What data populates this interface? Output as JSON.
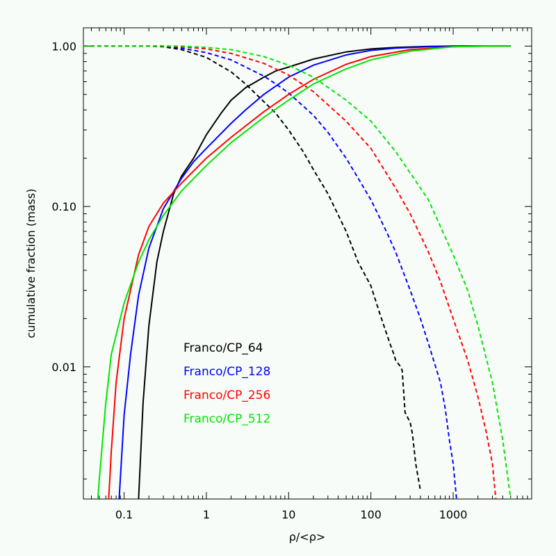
{
  "chart_data": {
    "type": "line",
    "xlabel": "ρ/<ρ>",
    "ylabel": "cumulative fraction (mass)",
    "xscale": "log",
    "yscale": "log",
    "xlim": [
      0.032,
      9000
    ],
    "ylim": [
      0.0015,
      1.3
    ],
    "x_ticks": [
      {
        "value": 0.1,
        "label": "0.1"
      },
      {
        "value": 1,
        "label": "1"
      },
      {
        "value": 10,
        "label": "10"
      },
      {
        "value": 100,
        "label": "100"
      },
      {
        "value": 1000,
        "label": "1000"
      }
    ],
    "y_ticks": [
      {
        "value": 1,
        "label": "1.00"
      },
      {
        "value": 0.1,
        "label": "0.10"
      },
      {
        "value": 0.01,
        "label": "0.01"
      }
    ],
    "legend": {
      "placement": "lower-left"
    },
    "series": [
      {
        "name": "Franco/CP_64",
        "color": "#000000",
        "cumulative_below": {
          "x": [
            0.15,
            0.17,
            0.2,
            0.25,
            0.3,
            0.4,
            0.5,
            0.7,
            1,
            1.5,
            2,
            3,
            5,
            7,
            10,
            20,
            50,
            100,
            200,
            500,
            1000,
            2000,
            5000
          ],
          "y": [
            0.0015,
            0.006,
            0.018,
            0.045,
            0.07,
            0.12,
            0.155,
            0.2,
            0.28,
            0.38,
            0.46,
            0.55,
            0.64,
            0.7,
            0.74,
            0.83,
            0.92,
            0.96,
            0.98,
            0.995,
            1.0,
            1.0,
            1.0
          ]
        },
        "cumulative_above": {
          "x": [
            0.032,
            0.1,
            0.2,
            0.3,
            0.5,
            1,
            2,
            3,
            5,
            7,
            10,
            15,
            20,
            30,
            50,
            70,
            100,
            130,
            170,
            190,
            200,
            230,
            240,
            250,
            260,
            300,
            320,
            350,
            400
          ],
          "y": [
            1.0,
            1.0,
            1.0,
            0.99,
            0.95,
            0.85,
            0.69,
            0.58,
            0.45,
            0.38,
            0.3,
            0.22,
            0.17,
            0.12,
            0.07,
            0.045,
            0.032,
            0.021,
            0.014,
            0.012,
            0.011,
            0.01,
            0.0095,
            0.007,
            0.0052,
            0.0045,
            0.0038,
            0.0025,
            0.0017
          ]
        }
      },
      {
        "name": "Franco/CP_128",
        "color": "#0000ff",
        "cumulative_below": {
          "x": [
            0.087,
            0.1,
            0.12,
            0.15,
            0.2,
            0.3,
            0.5,
            0.7,
            1,
            2,
            3,
            5,
            10,
            20,
            50,
            100,
            200,
            500,
            1000,
            2000,
            5000
          ],
          "y": [
            0.0015,
            0.005,
            0.012,
            0.028,
            0.055,
            0.097,
            0.15,
            0.19,
            0.23,
            0.33,
            0.4,
            0.5,
            0.64,
            0.76,
            0.88,
            0.94,
            0.97,
            0.99,
            1.0,
            1.0,
            1.0
          ]
        },
        "cumulative_above": {
          "x": [
            0.032,
            0.1,
            0.3,
            0.5,
            1,
            2,
            5,
            7,
            10,
            20,
            30,
            50,
            70,
            100,
            150,
            200,
            300,
            400,
            500,
            700,
            800,
            900,
            1000,
            1100
          ],
          "y": [
            1.0,
            1.0,
            1.0,
            0.97,
            0.91,
            0.82,
            0.65,
            0.58,
            0.51,
            0.37,
            0.29,
            0.2,
            0.15,
            0.11,
            0.072,
            0.052,
            0.03,
            0.02,
            0.014,
            0.008,
            0.0055,
            0.0035,
            0.0025,
            0.0015
          ]
        }
      },
      {
        "name": "Franco/CP_256",
        "color": "#ff0000",
        "cumulative_below": {
          "x": [
            0.065,
            0.07,
            0.08,
            0.1,
            0.15,
            0.2,
            0.3,
            0.5,
            1,
            2,
            5,
            10,
            20,
            50,
            100,
            300,
            1000,
            3000,
            5000
          ],
          "y": [
            0.0015,
            0.003,
            0.008,
            0.02,
            0.05,
            0.075,
            0.105,
            0.14,
            0.2,
            0.27,
            0.39,
            0.5,
            0.62,
            0.77,
            0.86,
            0.95,
            0.99,
            1.0,
            1.0
          ]
        },
        "cumulative_above": {
          "x": [
            0.032,
            0.1,
            0.3,
            0.5,
            1,
            2,
            5,
            10,
            20,
            50,
            100,
            200,
            300,
            500,
            700,
            1000,
            1500,
            2000,
            2500,
            3000,
            3300
          ],
          "y": [
            1.0,
            1.0,
            1.0,
            0.99,
            0.96,
            0.9,
            0.78,
            0.66,
            0.52,
            0.34,
            0.23,
            0.13,
            0.09,
            0.052,
            0.034,
            0.02,
            0.011,
            0.0065,
            0.004,
            0.0025,
            0.0015
          ]
        }
      },
      {
        "name": "Franco/CP_512",
        "color": "#00e600",
        "cumulative_below": {
          "x": [
            0.048,
            0.05,
            0.06,
            0.07,
            0.1,
            0.15,
            0.2,
            0.3,
            0.5,
            1,
            2,
            5,
            10,
            20,
            50,
            100,
            300,
            1000,
            3000,
            5000
          ],
          "y": [
            0.0015,
            0.002,
            0.006,
            0.012,
            0.025,
            0.045,
            0.062,
            0.088,
            0.125,
            0.18,
            0.25,
            0.36,
            0.46,
            0.58,
            0.72,
            0.82,
            0.93,
            0.99,
            1.0,
            1.0
          ]
        },
        "cumulative_above": {
          "x": [
            0.032,
            0.1,
            0.3,
            0.5,
            1,
            2,
            5,
            10,
            20,
            50,
            100,
            200,
            500,
            1000,
            1500,
            2000,
            3000,
            4000,
            5000
          ],
          "y": [
            1.0,
            1.0,
            1.0,
            1.0,
            0.98,
            0.95,
            0.86,
            0.76,
            0.64,
            0.46,
            0.34,
            0.22,
            0.11,
            0.05,
            0.03,
            0.018,
            0.008,
            0.0035,
            0.0015
          ]
        }
      }
    ]
  }
}
